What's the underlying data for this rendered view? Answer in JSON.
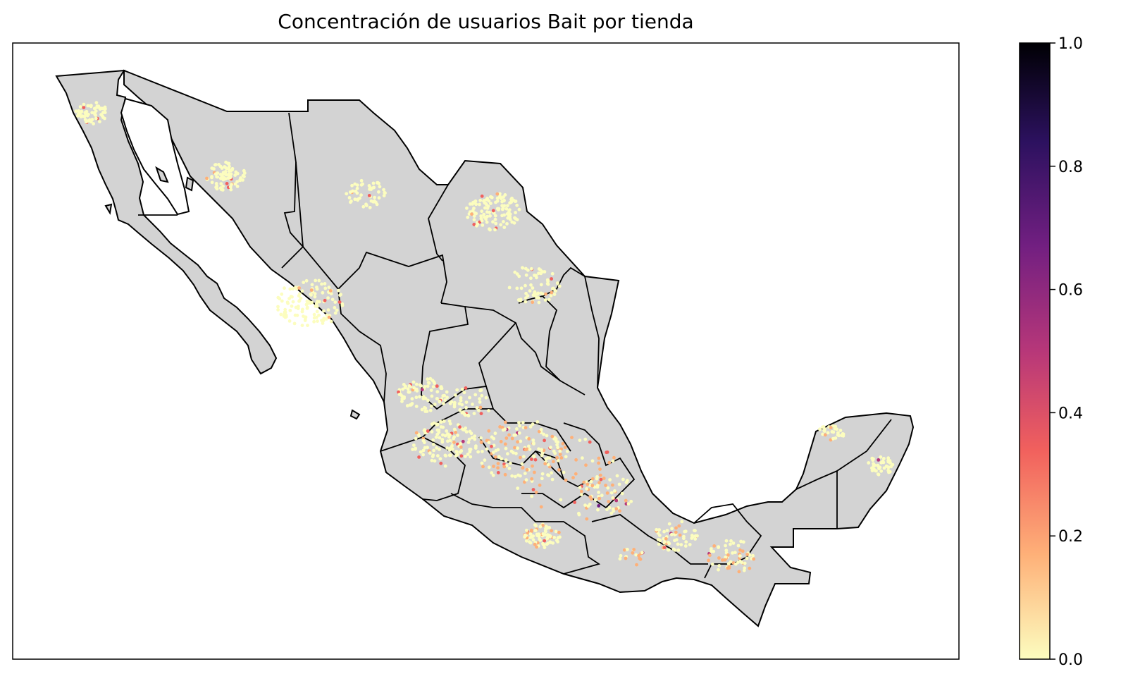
{
  "title": "Concentración de usuarios Bait por tienda",
  "colorbar": {
    "colormap": "magma_r",
    "min": 0.0,
    "max": 1.0,
    "ticks": [
      "0.0",
      "0.2",
      "0.4",
      "0.6",
      "0.8",
      "1.0"
    ],
    "stops": [
      "#fcfdbf",
      "#feb078",
      "#f1605d",
      "#b73779",
      "#721f81",
      "#2c115f",
      "#000004"
    ]
  },
  "map": {
    "region": "Mexico",
    "land_color": "#d3d3d3",
    "border_color": "#000000",
    "point_density_note": "densest clusters in central Mexico, higher values near Mexico City"
  }
}
